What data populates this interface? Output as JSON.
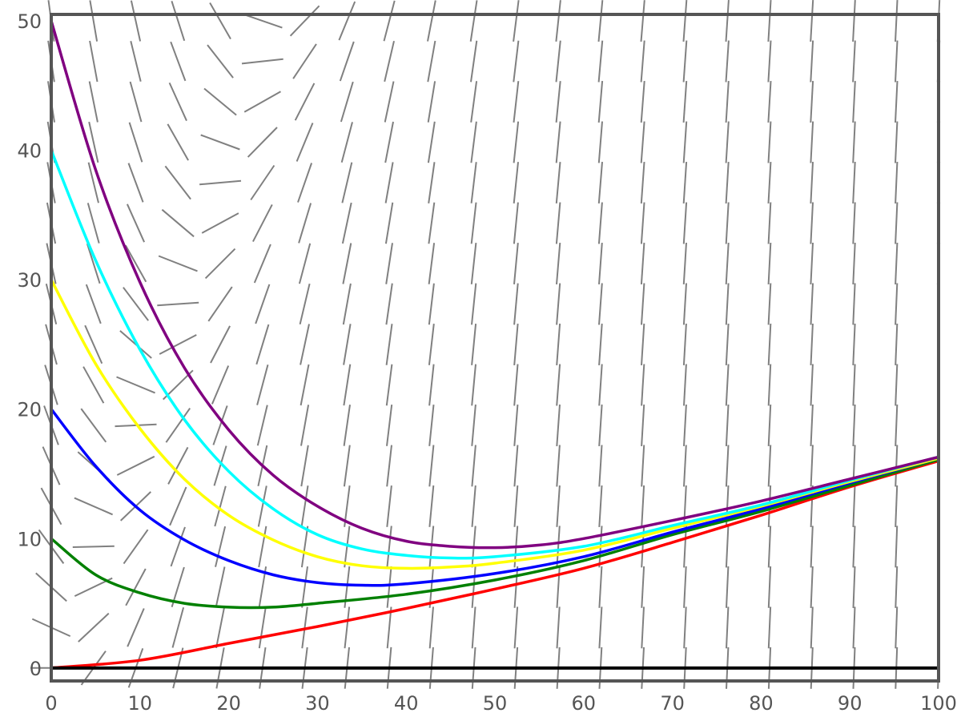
{
  "chart_data": {
    "type": "line",
    "title": "",
    "xlabel": "",
    "ylabel": "",
    "xlim": [
      0,
      100
    ],
    "ylim": [
      -1,
      50.5
    ],
    "x_ticks": [
      "0",
      "10",
      "20",
      "30",
      "40",
      "50",
      "60",
      "70",
      "80",
      "90",
      "100"
    ],
    "y_ticks": [
      "0",
      "10",
      "20",
      "30",
      "40",
      "50"
    ],
    "grid": false,
    "legend": "none",
    "direction_field": {
      "color": "#808080",
      "x_range": [
        0,
        100
      ],
      "y_range": [
        0,
        50
      ],
      "nx": 22,
      "ny": 17
    },
    "series": [
      {
        "color": "#ff0000",
        "x": [
          0,
          10,
          20,
          30,
          40,
          50,
          60,
          70,
          80,
          90,
          100
        ],
        "y": [
          0,
          0.6,
          1.9,
          3.2,
          4.6,
          6.1,
          7.7,
          9.7,
          11.8,
          14.0,
          16.0
        ]
      },
      {
        "color": "#008000",
        "x": [
          0,
          5,
          10,
          15,
          20,
          25,
          30,
          40,
          50,
          60,
          70,
          80,
          90,
          100
        ],
        "y": [
          10,
          7.2,
          5.8,
          5.0,
          4.7,
          4.7,
          5.0,
          5.7,
          6.8,
          8.3,
          10.3,
          12.1,
          14.1,
          16.1
        ]
      },
      {
        "color": "#0000ff",
        "x": [
          0,
          5,
          10,
          15,
          20,
          25,
          30,
          35,
          40,
          50,
          60,
          70,
          80,
          90,
          100
        ],
        "y": [
          20,
          15.6,
          12.2,
          9.9,
          8.3,
          7.2,
          6.6,
          6.4,
          6.5,
          7.3,
          8.6,
          10.5,
          12.3,
          14.3,
          16.2
        ]
      },
      {
        "color": "#ffff00",
        "x": [
          0,
          5,
          10,
          15,
          20,
          25,
          30,
          35,
          40,
          45,
          50,
          60,
          70,
          80,
          90,
          100
        ],
        "y": [
          30,
          23.5,
          18.5,
          14.6,
          11.8,
          9.9,
          8.6,
          7.9,
          7.7,
          7.8,
          8.1,
          9.1,
          10.8,
          12.5,
          14.4,
          16.2
        ]
      },
      {
        "color": "#00ffff",
        "x": [
          0,
          5,
          10,
          15,
          20,
          25,
          30,
          35,
          40,
          45,
          50,
          60,
          70,
          80,
          90,
          100
        ],
        "y": [
          40,
          31.5,
          24.6,
          19.2,
          15.2,
          12.3,
          10.3,
          9.2,
          8.7,
          8.5,
          8.6,
          9.4,
          11.0,
          12.6,
          14.5,
          16.3
        ]
      },
      {
        "color": "#800080",
        "x": [
          0,
          5,
          10,
          15,
          20,
          25,
          30,
          35,
          40,
          45,
          50,
          55,
          60,
          70,
          80,
          90,
          100
        ],
        "y": [
          50,
          38.5,
          29.8,
          23.2,
          18.4,
          14.9,
          12.5,
          10.8,
          9.8,
          9.4,
          9.3,
          9.5,
          10.0,
          11.4,
          12.9,
          14.6,
          16.3
        ]
      }
    ]
  }
}
